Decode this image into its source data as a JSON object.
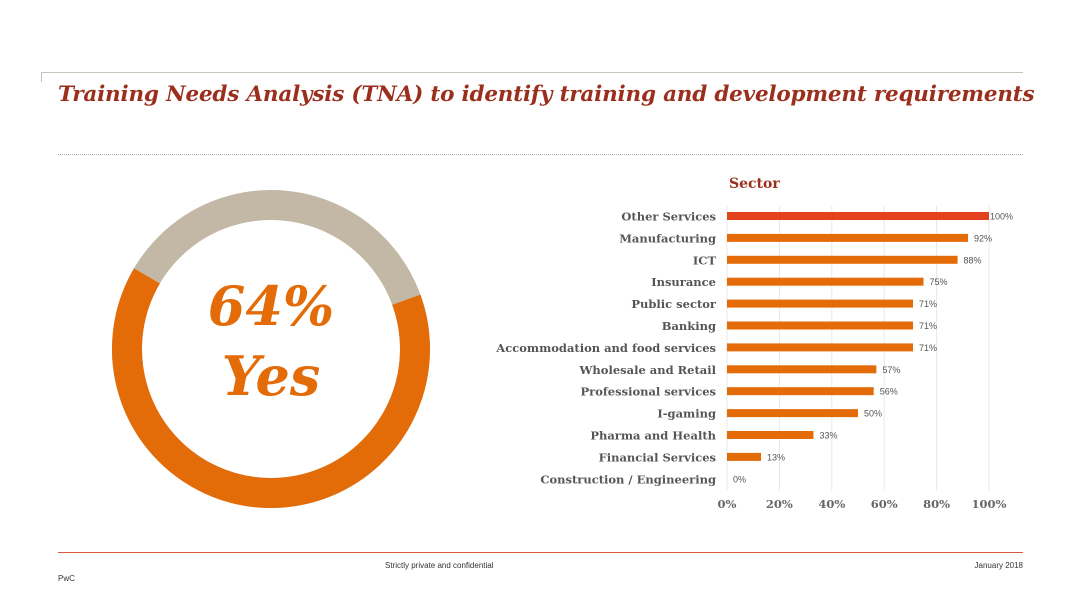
{
  "header": {
    "title": "Training Needs Analysis (TNA) to identify training and development requirements"
  },
  "donut": {
    "percent_label": "64%",
    "answer_label": "Yes",
    "value": 64,
    "colors": {
      "yes": "#e36c09",
      "no": "#c2b8a5"
    }
  },
  "chart_data": {
    "type": "bar",
    "orientation": "horizontal",
    "title": "Sector",
    "categories": [
      "Other Services",
      "Manufacturing",
      "ICT",
      "Insurance",
      "Public sector",
      "Banking",
      "Accommodation and food services",
      "Wholesale and Retail",
      "Professional services",
      "I-gaming",
      "Pharma and Health",
      "Financial Services",
      "Construction / Engineering"
    ],
    "values": [
      100,
      92,
      88,
      75,
      71,
      71,
      71,
      57,
      56,
      50,
      33,
      13,
      0
    ],
    "data_labels": [
      "100%",
      "92%",
      "88%",
      "75%",
      "71%",
      "71%",
      "71%",
      "57%",
      "56%",
      "50%",
      "33%",
      "13%",
      "0%"
    ],
    "xlim": [
      0,
      100
    ],
    "x_ticks": [
      0,
      20,
      40,
      60,
      80,
      100
    ],
    "x_tick_labels": [
      "0%",
      "20%",
      "40%",
      "60%",
      "80%",
      "100%"
    ],
    "grid": true,
    "colors": {
      "highlight": "#e3421e",
      "bar": "#e36c09",
      "grid": "#e8e8e8",
      "title": "#9b2f1e"
    }
  },
  "footer": {
    "confidential": "Strictly private and confidential",
    "date": "January 2018",
    "brand": "PwC"
  }
}
